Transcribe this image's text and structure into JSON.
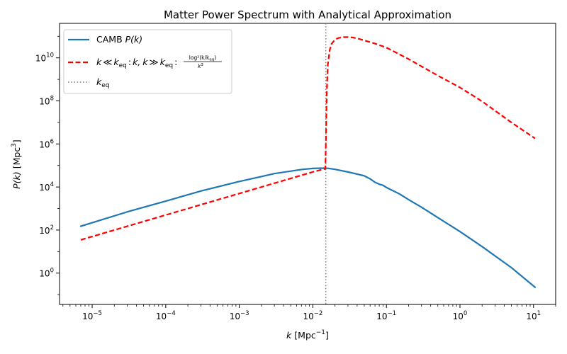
{
  "chart_data": {
    "type": "line",
    "title": "Matter Power Spectrum with Analytical Approximation",
    "xlabel": {
      "main": "k",
      "unit": "[Mpc",
      "unit_exp": "−1",
      "unit_close": "]"
    },
    "ylabel": {
      "main": "P(k)",
      "unit": "[Mpc",
      "unit_exp": "3",
      "unit_close": "]"
    },
    "xscale": "log",
    "yscale": "log",
    "xlim": [
      3.6e-06,
      20
    ],
    "ylim": [
      0.035,
      400000000000.0
    ],
    "xticks": [
      {
        "exp": "−5",
        "value": 1e-05
      },
      {
        "exp": "−4",
        "value": 0.0001
      },
      {
        "exp": "−3",
        "value": 0.001
      },
      {
        "exp": "−2",
        "value": 0.01
      },
      {
        "exp": "−1",
        "value": 0.1
      },
      {
        "exp": "0",
        "value": 1
      },
      {
        "exp": "1",
        "value": 10
      }
    ],
    "yticks": [
      {
        "exp": "0",
        "value": 1
      },
      {
        "exp": "2",
        "value": 100
      },
      {
        "exp": "4",
        "value": 10000
      },
      {
        "exp": "6",
        "value": 1000000
      },
      {
        "exp": "8",
        "value": 100000000
      },
      {
        "exp": "10",
        "value": 10000000000
      }
    ],
    "tick_base": "10",
    "grid": false,
    "legend_position": "top-left",
    "k_eq": 0.015,
    "series": [
      {
        "name": "CAMB P(k)",
        "legend_parts": {
          "pre": "CAMB ",
          "var": "P(k)"
        },
        "color": "#1f77b4",
        "style": "solid",
        "x": [
          7e-06,
          1e-05,
          3e-05,
          0.0001,
          0.0003,
          0.001,
          0.003,
          0.007,
          0.01,
          0.013,
          0.016,
          0.02,
          0.03,
          0.05,
          0.06,
          0.07,
          0.08,
          0.09,
          0.1,
          0.12,
          0.15,
          0.2,
          0.3,
          0.5,
          1,
          2,
          5,
          10.5
        ],
        "y": [
          150,
          220,
          700,
          2200,
          6500,
          18000,
          42000,
          65000,
          73000,
          75000,
          74000,
          66000,
          50000,
          33000,
          24000,
          16500,
          13500,
          12000,
          9500,
          7000,
          4800,
          2600,
          1150,
          380,
          85,
          17,
          1.8,
          0.22
        ]
      },
      {
        "name": "k ≪ k_eq : k, k ≫ k_eq : log²(k/k_eq)/k³",
        "legend_parts": {
          "k": "k",
          "ll": "≪",
          "keq": "k",
          "eqsub": "eq",
          "colon": ":",
          "k2": "k,",
          "gg": "≫",
          "num": "log²(k/k",
          "numsub": "eq",
          "numclose": ")",
          "den": "k",
          "densup": "3"
        },
        "color": "#ff0000",
        "style": "dashed",
        "x": [
          7e-06,
          1e-05,
          0.0001,
          0.001,
          0.01,
          0.0148,
          0.01505,
          0.0155,
          0.016,
          0.017,
          0.018,
          0.02,
          0.022,
          0.025,
          0.03,
          0.035,
          0.04,
          0.05,
          0.07,
          0.1,
          0.2,
          0.5,
          1,
          2,
          5,
          10.5
        ],
        "y": [
          35,
          50,
          500,
          5000,
          50000,
          70000,
          1500000,
          300000000,
          5000000000,
          24000000000,
          45000000000,
          70000000000,
          82000000000,
          91000000000,
          92000000000,
          88000000000,
          80000000000,
          65000000000,
          46000000000,
          30000000000,
          8800000000,
          1500000000,
          420000000,
          95000000,
          10000000,
          1800000
        ]
      },
      {
        "name": "k_eq",
        "legend_parts": {
          "k": "k",
          "sub": "eq"
        },
        "color": "#808080",
        "style": "dotted"
      }
    ]
  }
}
